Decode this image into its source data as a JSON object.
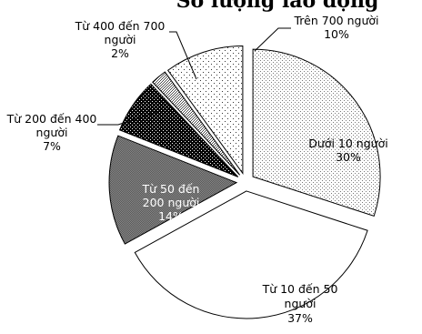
{
  "chart_data": {
    "type": "pie",
    "title": "Số lượng lao động",
    "exploded": true,
    "start_angle_deg": 0,
    "direction": "clockwise",
    "slices": [
      {
        "label": [
          "Dưới 10 người",
          "30%"
        ],
        "value": 30,
        "pattern": "light-dots",
        "text_color": "#000000"
      },
      {
        "label": [
          "Từ 10 đến 50",
          "người",
          "37%"
        ],
        "value": 37,
        "pattern": "white",
        "text_color": "#000000"
      },
      {
        "label": [
          "Từ 50 đến",
          "200 người",
          "14%"
        ],
        "value": 14,
        "pattern": "dense-gray",
        "text_color": "#ffffff"
      },
      {
        "label": [
          "Từ 200 đến 400",
          "người",
          "7%"
        ],
        "value": 7,
        "pattern": "black-dots",
        "text_color": "#000000",
        "leader": true
      },
      {
        "label": [
          "Từ 400 đến 700",
          "người",
          "2%"
        ],
        "value": 2,
        "pattern": "medium-dots",
        "text_color": "#000000",
        "leader": true
      },
      {
        "label": [
          "Trên 700 người",
          "10%"
        ],
        "value": 10,
        "pattern": "sparse-dots",
        "text_color": "#000000",
        "leader": true
      }
    ]
  }
}
